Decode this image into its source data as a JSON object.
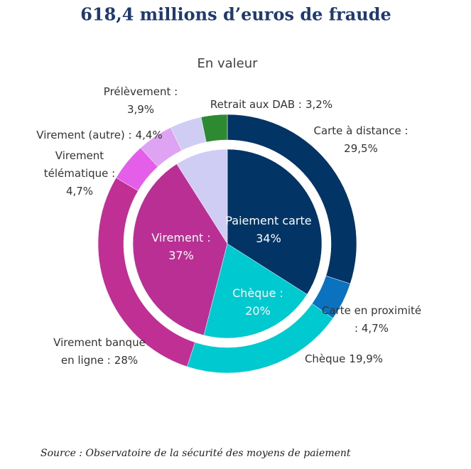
{
  "chart_data": {
    "type": "nested-pie",
    "title": "618,4 millions d’euros de fraude",
    "subtitle": "En valeur",
    "source": "Source : Observatoire de la sécurité des moyens de paiement",
    "inner": {
      "categories": [
        "Paiement carte",
        "Chèque :",
        "Virement :",
        null
      ],
      "values": [
        34,
        20,
        37,
        9
      ],
      "value_labels": [
        "34%",
        "20%",
        "37%",
        null
      ],
      "colors": [
        "#033466",
        "#00c9cf",
        "#b92f93",
        "#cfcdf4"
      ]
    },
    "outer": {
      "categories": [
        [
          "Carte à distance :"
        ],
        [
          "Carte en proximité"
        ],
        [
          "Chèque"
        ],
        [
          "Virement banque",
          "en ligne :"
        ],
        [
          "Virement",
          "télématique :"
        ],
        [
          "Virement (autre) :"
        ],
        [
          "Prélèvement :"
        ],
        [
          "Retrait aux DAB :"
        ]
      ],
      "values": [
        29.5,
        4.7,
        19.9,
        28,
        4.7,
        4.4,
        3.9,
        3.2
      ],
      "value_labels": [
        "29,5%",
        ": 4,7%",
        "19,9%",
        "28%",
        "4,7%",
        "4,4%",
        "3,9%",
        "3,2%"
      ],
      "colors": [
        "#033466",
        "#0a72bf",
        "#00c9cf",
        "#bf2f94",
        "#e55eea",
        "#dea3f2",
        "#cfcdf4",
        "#2e8a30"
      ]
    }
  }
}
